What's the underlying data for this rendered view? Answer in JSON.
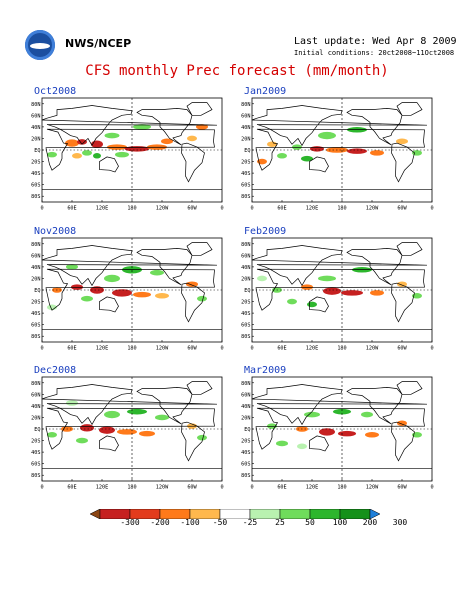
{
  "header": {
    "org": "NWS/NCEP",
    "last_update": "Last update: Wed Apr 8 2009",
    "initial_conditions": "Initial conditions: 20ct2008~11Oct2008"
  },
  "title": "CFS monthly Prec forecast (mm/month)",
  "lat_labels": [
    "80N",
    "60N",
    "40N",
    "20N",
    "EQ",
    "20S",
    "40S",
    "60S",
    "80S"
  ],
  "lon_labels": [
    "0",
    "60E",
    "120E",
    "180",
    "120W",
    "60W",
    "0"
  ],
  "panels": [
    {
      "label": "Oct2008"
    },
    {
      "label": "Jan2009"
    },
    {
      "label": "Nov2008"
    },
    {
      "label": "Feb2009"
    },
    {
      "label": "Dec2008"
    },
    {
      "label": "Mar2009"
    }
  ],
  "colorbar": {
    "labels": [
      "-300",
      "-200",
      "-100",
      "-50",
      "-25",
      "25",
      "50",
      "100",
      "200",
      "300"
    ],
    "colors": [
      "#8b4513",
      "#c62020",
      "#e33b1c",
      "#ff7a1a",
      "#ffb84d",
      "#ffffff",
      "#b9f2b0",
      "#6fdc5b",
      "#2db62d",
      "#15911a",
      "#1e7fd9"
    ]
  },
  "colors": {
    "title": "#d40000",
    "panel_label": "#1a3fbf"
  }
}
